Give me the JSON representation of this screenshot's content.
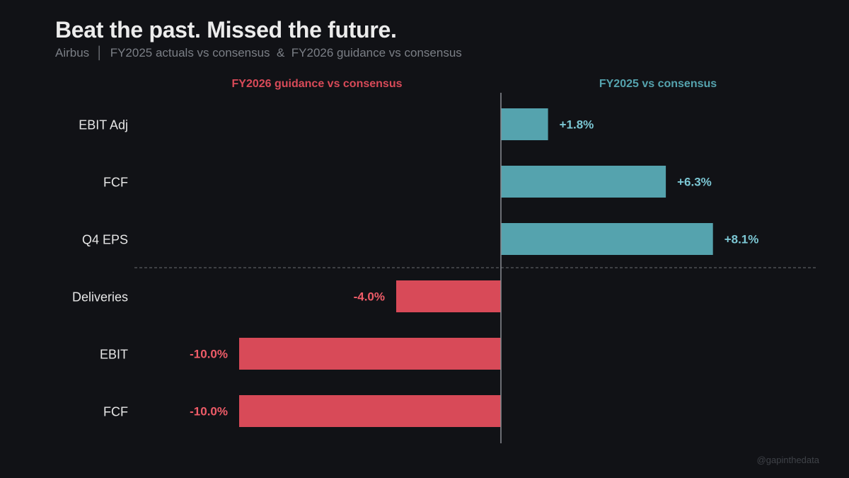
{
  "title": "Beat the past.  Missed the future.",
  "subtitle": "Airbus  │  FY2025 actuals vs consensus  &  FY2026 guidance vs consensus",
  "watermark": "@gapinthedata",
  "colors": {
    "background": "#111216",
    "positive": "#55a3ae",
    "negative": "#d84a58",
    "positive_text": "#7cc7d4",
    "negative_text": "#ef5c68",
    "axis": "#8a8d93",
    "divider": "#6a6d73"
  },
  "chart_data": {
    "type": "bar",
    "orientation": "horizontal",
    "title": "Beat the past.  Missed the future.",
    "xlim": [
      -10,
      10
    ],
    "unit": "%",
    "groups": [
      {
        "name": "FY2025 vs consensus",
        "header_position": "right",
        "color_key": "positive"
      },
      {
        "name": "FY2026 guidance vs consensus",
        "header_position": "left",
        "color_key": "negative"
      }
    ],
    "categories": [
      "EBIT Adj",
      "FCF",
      "Q4 EPS",
      "Deliveries",
      "EBIT",
      "FCF"
    ],
    "values": [
      1.8,
      6.3,
      8.1,
      -4.0,
      -10.0,
      -10.0
    ],
    "value_labels": [
      "+1.8%",
      "+6.3%",
      "+8.1%",
      "-4.0%",
      "-10.0%",
      "-10.0%"
    ],
    "group_index": [
      0,
      0,
      0,
      1,
      1,
      1
    ]
  }
}
